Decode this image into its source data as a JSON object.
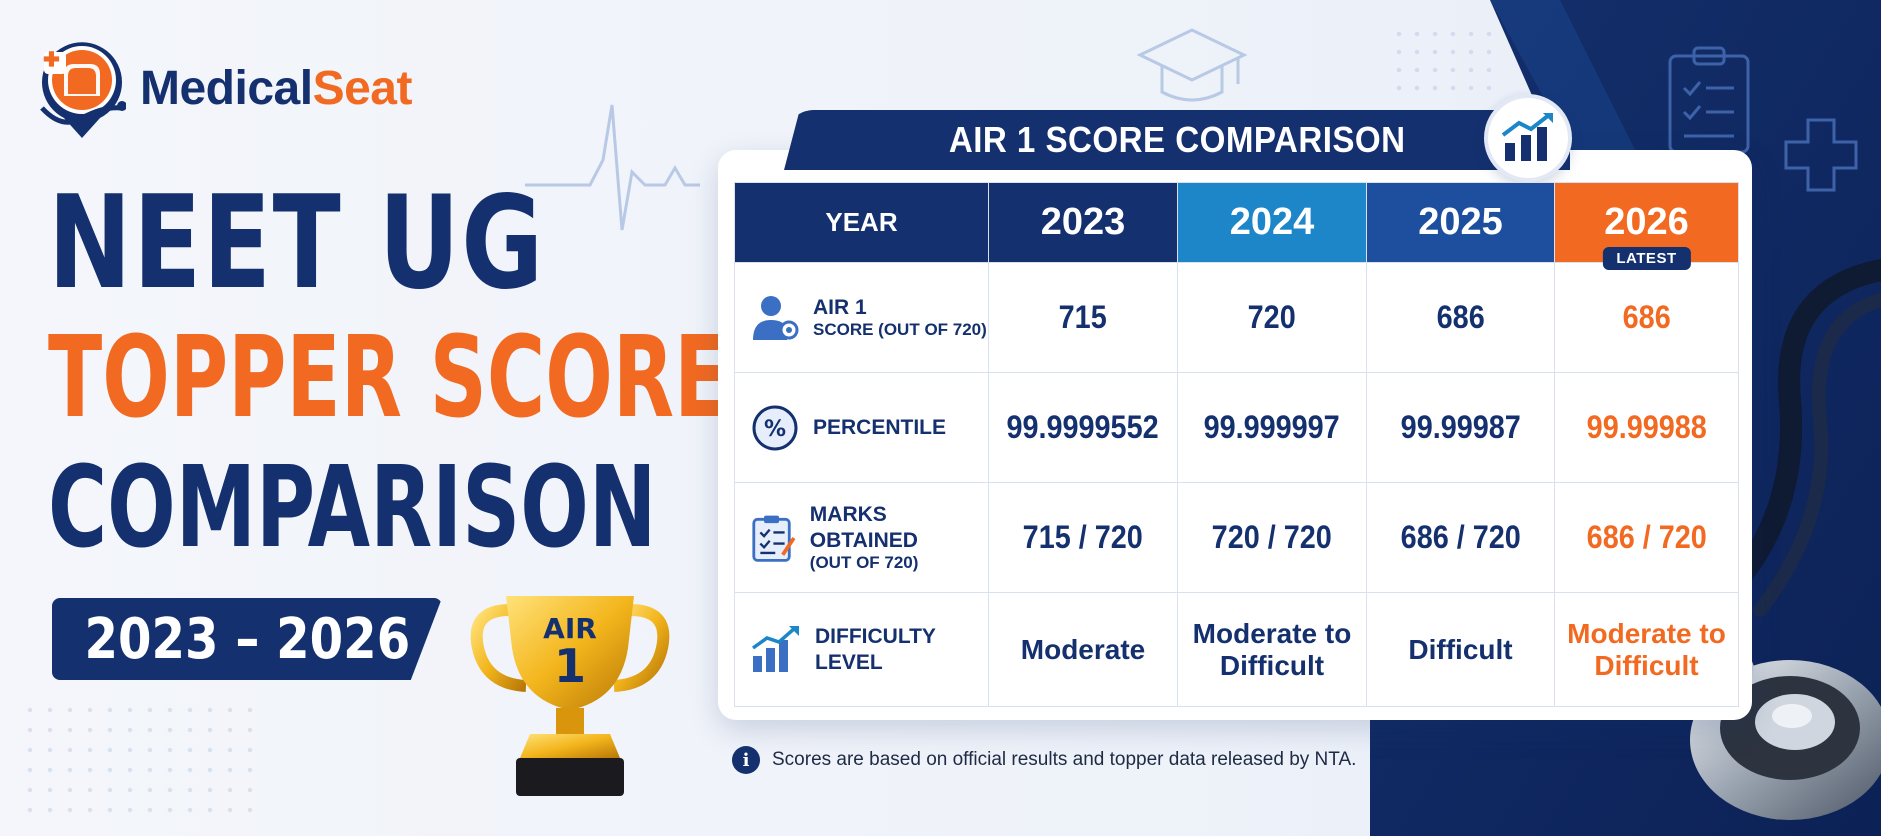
{
  "brand": {
    "name_part1": "Medical",
    "name_part2": "Seat",
    "navy": "#14306e",
    "orange": "#f26a21",
    "logo_icon": "chair-stethoscope-logo-icon"
  },
  "headline": {
    "line1": "NEET UG",
    "line2": "TOPPER SCORE",
    "line3": "COMPARISON",
    "years": "2023 – 2026"
  },
  "trophy": {
    "line1": "AIR",
    "line2": "1",
    "icon": "trophy-icon"
  },
  "table": {
    "title": "AIR 1 SCORE COMPARISON",
    "title_icon": "chart-up-icon",
    "header": {
      "label": "YEAR",
      "years": [
        "2023",
        "2024",
        "2025",
        "2026"
      ],
      "latest_badge": "LATEST"
    },
    "rows": [
      {
        "icon": "user-badge-icon",
        "label": "AIR 1",
        "sublabel": "SCORE (OUT OF 720)",
        "values": [
          "715",
          "720",
          "686",
          "686"
        ]
      },
      {
        "icon": "percent-icon",
        "label": "PERCENTILE",
        "sublabel": "",
        "values": [
          "99.9999552",
          "99.999997",
          "99.99987",
          "99.99988"
        ]
      },
      {
        "icon": "clipboard-icon",
        "label": "MARKS OBTAINED",
        "sublabel": "(OUT OF 720)",
        "values": [
          "715 / 720",
          "720 / 720",
          "686 / 720",
          "686 / 720"
        ]
      },
      {
        "icon": "bar-growth-icon",
        "label": "DIFFICULTY",
        "sublabel": "LEVEL",
        "values": [
          "Moderate",
          "Moderate to Difficult",
          "Difficult",
          "Moderate to Difficult"
        ]
      }
    ]
  },
  "note": {
    "icon": "info-icon",
    "text": "Scores are based on official results and topper data released by NTA."
  }
}
